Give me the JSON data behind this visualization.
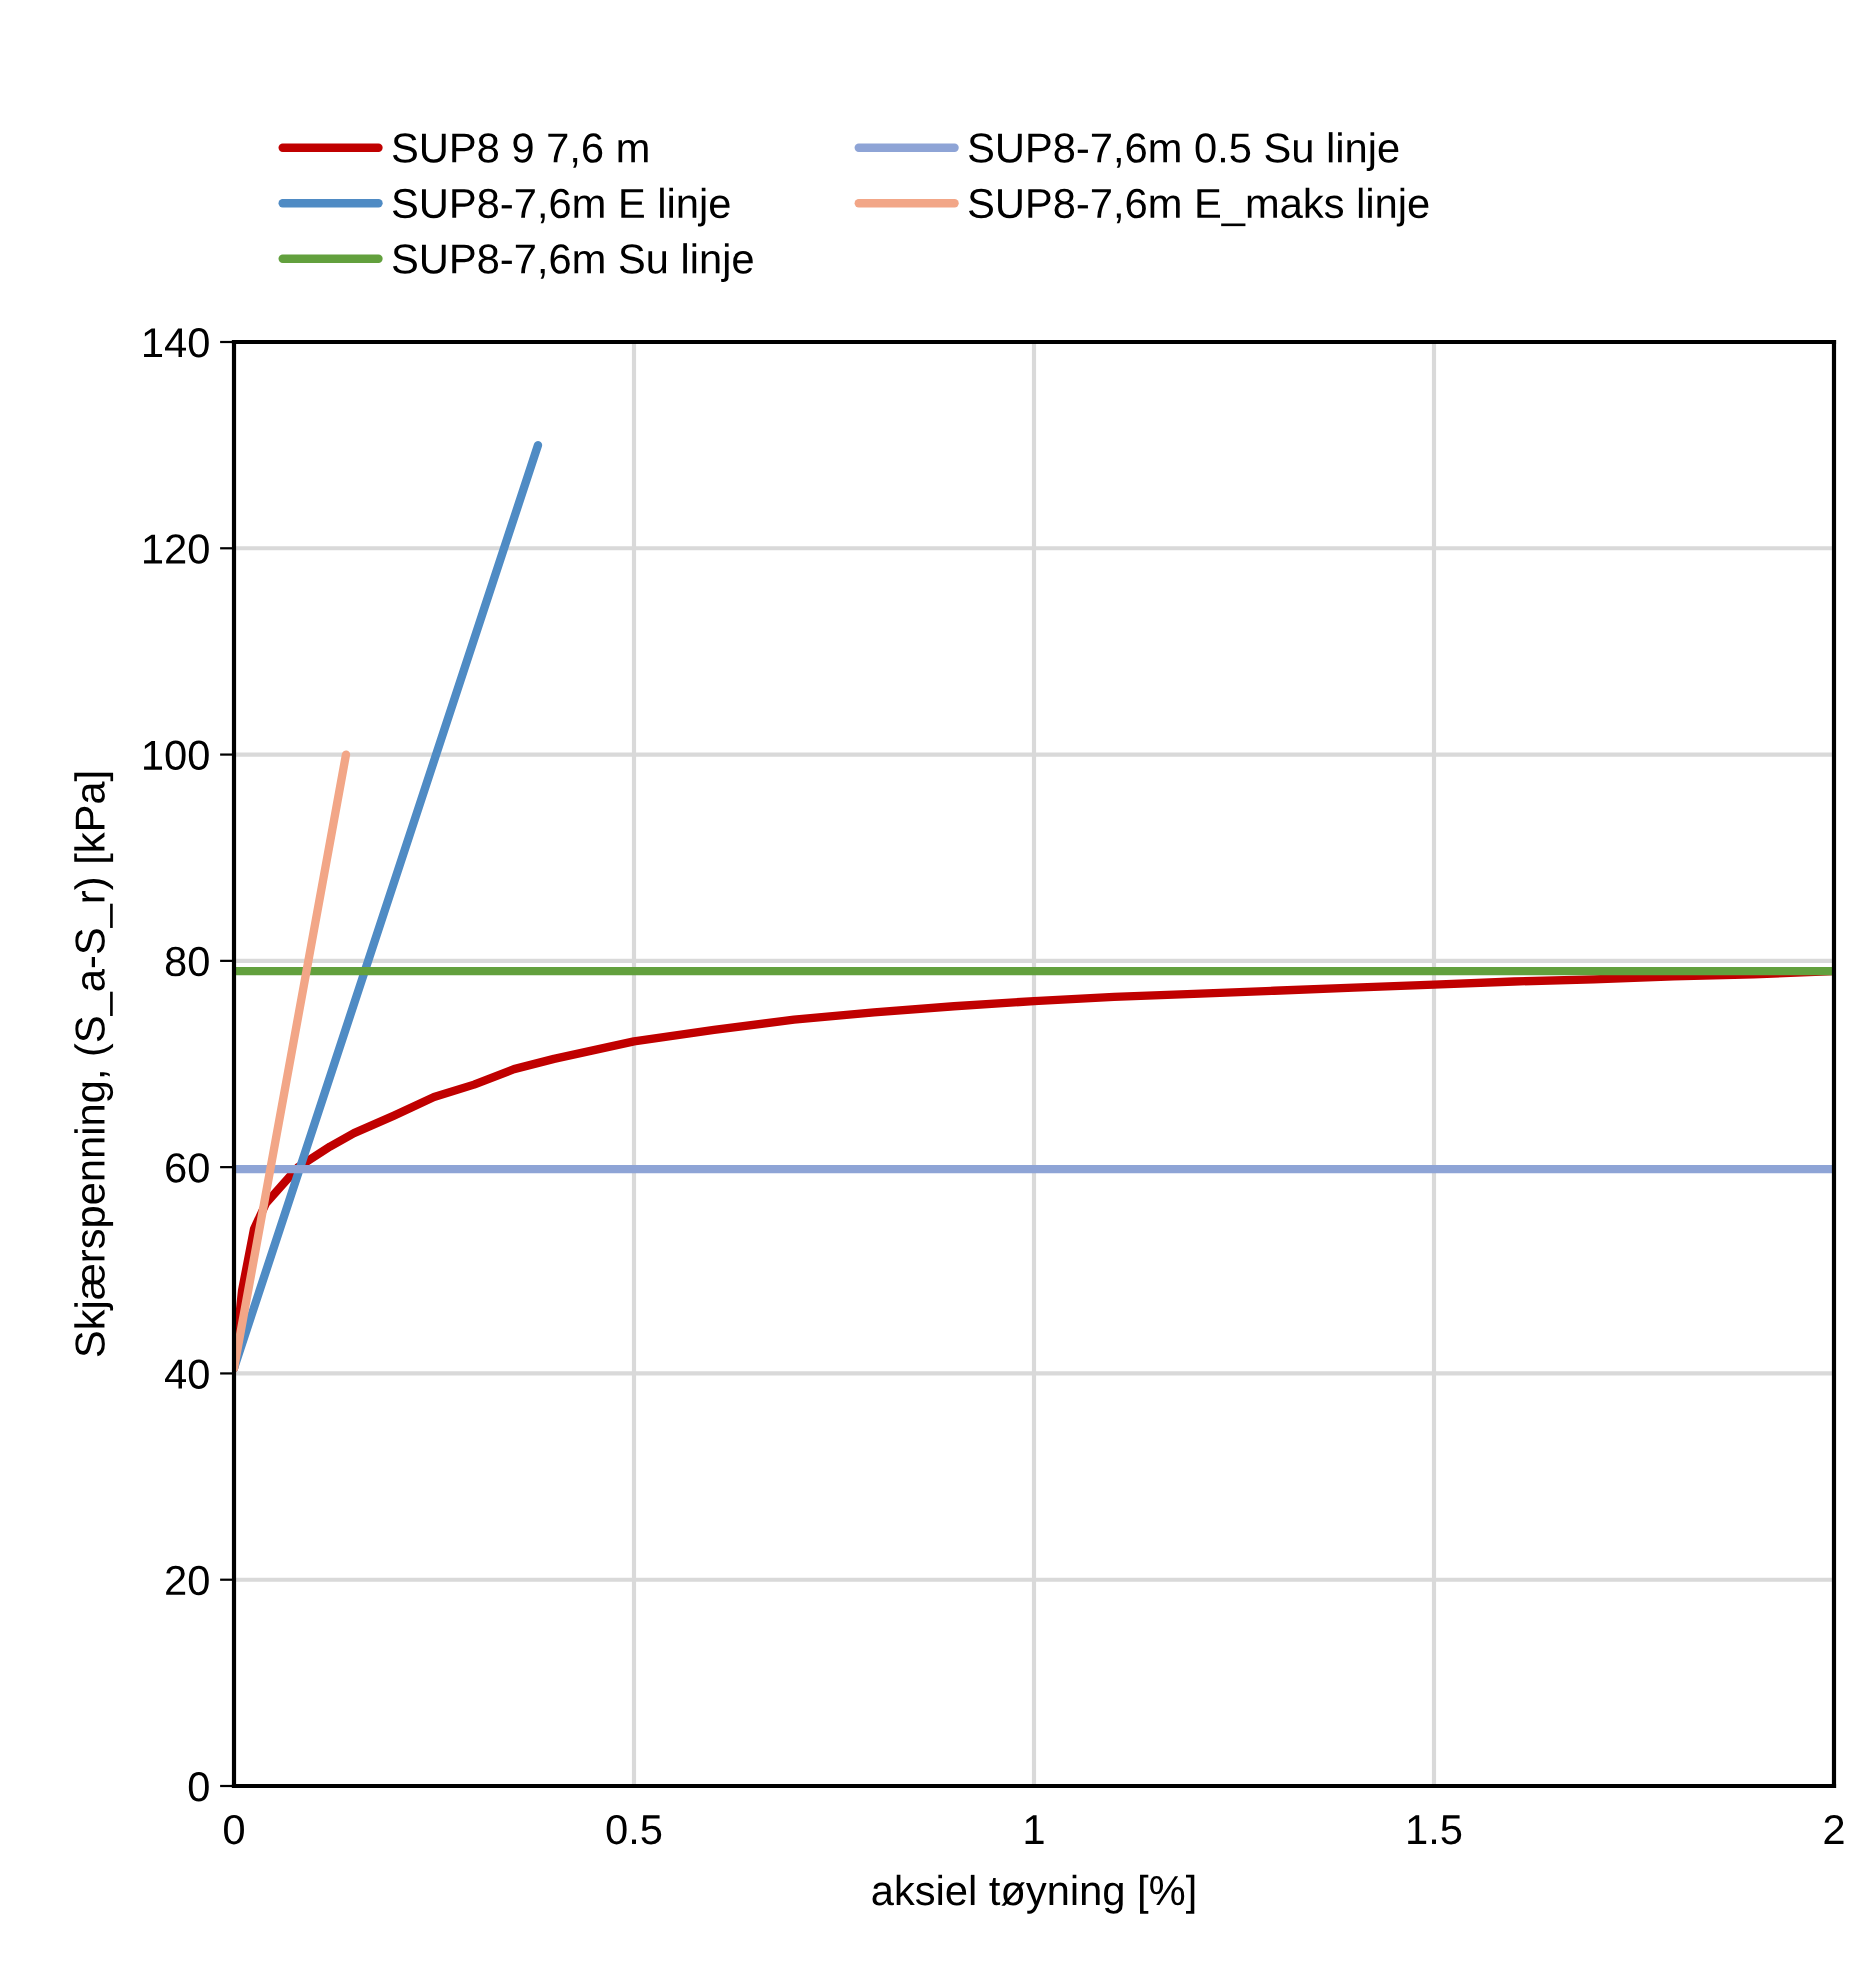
{
  "chart_data": {
    "type": "line",
    "xlabel": "aksiel tøyning [%]",
    "ylabel": "Skjærspenning, (S_a-S_r) [kPa]",
    "xlim": [
      0,
      2
    ],
    "xticks": [
      0,
      0.5,
      1,
      1.5,
      2
    ],
    "ylim": [
      0,
      140
    ],
    "yticks": [
      0,
      20,
      40,
      60,
      80,
      100,
      120,
      140
    ],
    "grid": true,
    "legend": "top",
    "marker": "none",
    "line_style": "solid",
    "series": [
      {
        "name": "SUP8 9 7,6 m",
        "color": "#c00000",
        "x": [
          0,
          0.01,
          0.025,
          0.04,
          0.08,
          0.12,
          0.15,
          0.2,
          0.25,
          0.3,
          0.35,
          0.4,
          0.5,
          0.6,
          0.7,
          0.8,
          0.9,
          1.0,
          1.1,
          1.2,
          1.3,
          1.4,
          1.5,
          1.6,
          1.7,
          1.8,
          1.9,
          2.0
        ],
        "values": [
          40.5,
          48,
          54,
          56.5,
          60,
          62,
          63.3,
          65,
          66.8,
          68,
          69.5,
          70.5,
          72.2,
          73.3,
          74.3,
          75,
          75.6,
          76.1,
          76.5,
          76.8,
          77.1,
          77.4,
          77.7,
          78,
          78.2,
          78.5,
          78.7,
          79
        ]
      },
      {
        "name": "SUP8-7,6m E linje",
        "color": "#4f8bc4",
        "x": [
          0,
          0.38
        ],
        "values": [
          40.5,
          130
        ]
      },
      {
        "name": "SUP8-7,6m Su linje",
        "color": "#62a03d",
        "x": [
          0,
          2
        ],
        "values": [
          79,
          79
        ]
      },
      {
        "name": "SUP8-7,6m 0.5 Su linje",
        "color": "#8ea4d6",
        "x": [
          0,
          2
        ],
        "values": [
          59.8,
          59.8
        ]
      },
      {
        "name": "SUP8-7,6m E_maks linje",
        "color": "#f2a687",
        "x": [
          0,
          0.14
        ],
        "values": [
          40.5,
          100
        ]
      }
    ]
  }
}
